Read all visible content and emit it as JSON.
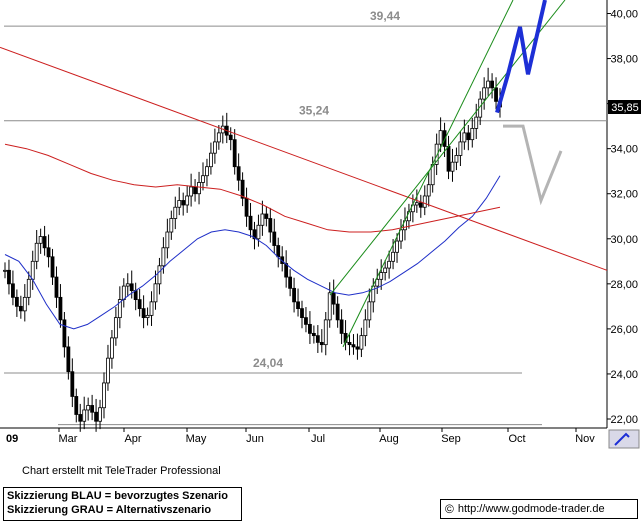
{
  "chart_data": {
    "type": "candlestick",
    "y_axis": {
      "ticks": [
        "40,00",
        "38,00",
        "36,00",
        "34,00",
        "32,00",
        "30,00",
        "28,00",
        "26,00",
        "24,00",
        "22,00"
      ],
      "range": [
        21.6,
        40.6
      ],
      "position": "right"
    },
    "x_axis": {
      "labels": [
        "09",
        "Mar",
        "Apr",
        "May",
        "Jun",
        "Jul",
        "Aug",
        "Sep",
        "Oct",
        "Nov"
      ]
    },
    "last_price_label": "35,85",
    "horizontal_levels": [
      {
        "label": "39,44",
        "value": 39.44
      },
      {
        "label": "35,24",
        "value": 35.24
      },
      {
        "label": "24,04",
        "value": 24.04
      }
    ],
    "price_series": [
      28.6,
      28.0,
      27.4,
      27.0,
      26.8,
      27.4,
      28.2,
      29.0,
      29.8,
      30.1,
      29.6,
      29.2,
      28.3,
      27.4,
      26.4,
      25.2,
      24.1,
      23.0,
      22.2,
      21.9,
      22.4,
      22.6,
      22.3,
      21.9,
      22.5,
      23.6,
      24.7,
      25.6,
      26.5,
      27.3,
      27.9,
      28.0,
      27.7,
      27.3,
      26.9,
      26.5,
      26.6,
      27.2,
      28.0,
      28.8,
      29.6,
      30.3,
      30.9,
      31.4,
      31.7,
      31.5,
      31.9,
      32.3,
      32.0,
      32.5,
      32.8,
      33.2,
      33.8,
      34.3,
      34.7,
      35.0,
      34.6,
      34.4,
      33.2,
      32.6,
      31.8,
      31.0,
      30.4,
      30.0,
      30.6,
      31.1,
      30.9,
      30.3,
      29.7,
      29.2,
      28.9,
      28.3,
      27.8,
      27.2,
      26.9,
      26.5,
      26.2,
      25.8,
      25.7,
      25.4,
      25.3,
      26.4,
      27.6,
      27.1,
      26.4,
      25.8,
      25.4,
      25.3,
      25.2,
      25.1,
      25.7,
      26.4,
      27.2,
      27.9,
      28.2,
      28.5,
      28.7,
      29.0,
      29.4,
      29.9,
      30.4,
      30.8,
      31.2,
      31.5,
      31.6,
      31.4,
      31.9,
      32.4,
      33.3,
      34.2,
      34.8,
      34.1,
      33.0,
      33.4,
      33.7,
      34.3,
      34.7,
      34.4,
      34.9,
      35.4,
      36.2,
      36.7,
      37.0,
      36.7,
      36.1,
      35.85
    ],
    "moving_averages": [
      {
        "color": "#1f2fc8",
        "values": [
          29.3,
          29.0,
          28.2,
          27.1,
          26.2,
          26.0,
          26.2,
          26.6,
          27.0,
          27.5,
          27.9,
          28.4,
          29.0,
          29.5,
          30.0,
          30.3,
          30.4,
          30.3,
          30.1,
          29.7,
          29.1,
          28.6,
          28.2,
          27.9,
          27.6,
          27.5,
          27.6,
          27.8,
          28.1,
          28.5,
          28.9,
          29.4,
          29.9,
          30.5,
          31.0,
          31.8,
          32.8
        ]
      },
      {
        "color": "#cc1f1f",
        "values": [
          34.2,
          34.0,
          33.7,
          33.3,
          32.9,
          32.6,
          32.4,
          32.3,
          32.4,
          32.3,
          32.2,
          31.9,
          31.5,
          31.0,
          30.7,
          30.4,
          30.3,
          30.3,
          30.4,
          30.6,
          30.8,
          31.0,
          31.2,
          31.4
        ]
      }
    ],
    "trend_lines": [
      {
        "color": "#cc1f1f",
        "from": [
          "Jan",
          38.5
        ],
        "to": [
          "Nov",
          28.6
        ]
      },
      {
        "color": "#1a8c1a",
        "from": [
          "Jul",
          25.2
        ],
        "to": [
          "Oct",
          40.6
        ]
      },
      {
        "color": "#1a8c1a",
        "from": [
          "Jul",
          27.5
        ],
        "to": [
          "Oct",
          40.6
        ]
      }
    ],
    "scenario_sketches": [
      {
        "color": "#1d2fd6",
        "name": "bevorzugtes Szenario",
        "points": [
          35.6,
          37.3,
          39.4,
          37.3,
          40.6
        ]
      },
      {
        "color": "#b4b4b4",
        "name": "Alternativszenario",
        "points": [
          35.0,
          35.0,
          31.7,
          33.9
        ]
      }
    ]
  },
  "footer": {
    "credit": "Chart erstellt mit TeleTrader Professional",
    "legend_blue": "Skizzierung BLAU = bevorzugtes Szenario",
    "legend_gray": "Skizzierung GRAU = Alternativszenario",
    "copyright_symbol": "©",
    "url": "http://www.godmode-trader.de"
  }
}
